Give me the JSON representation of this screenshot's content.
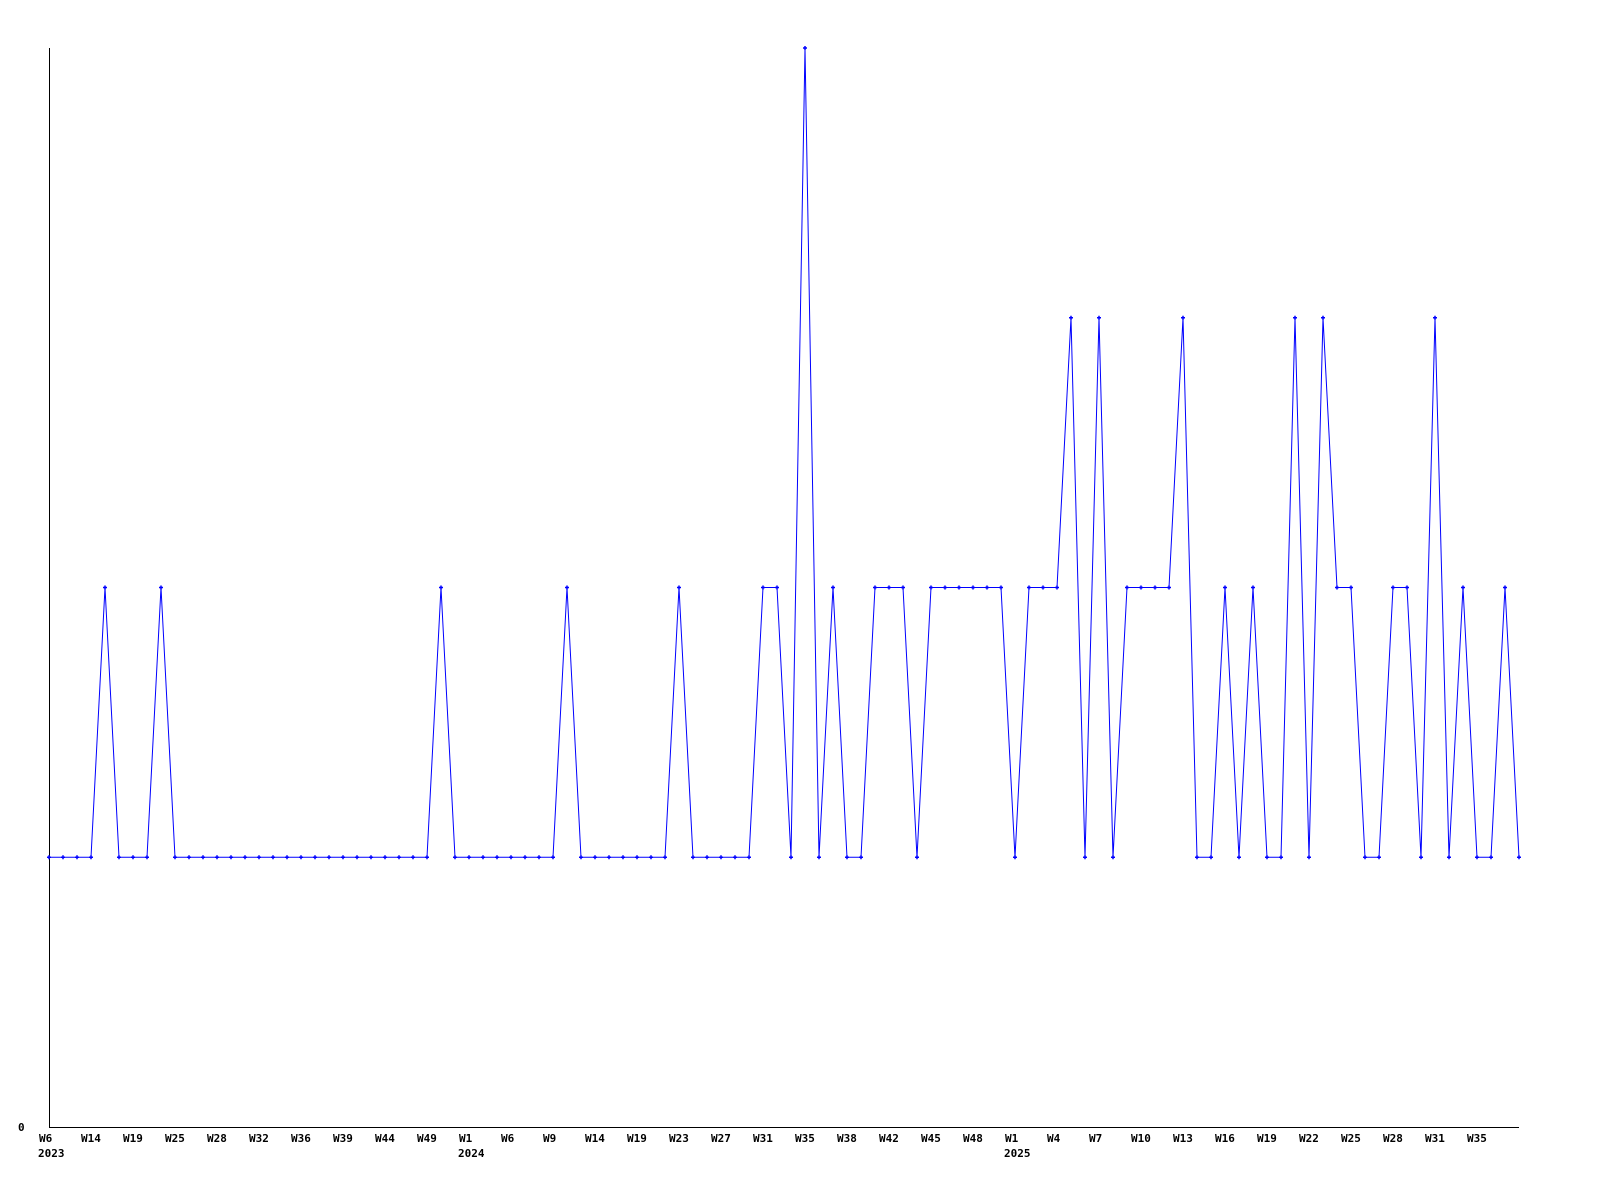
{
  "chart_data": {
    "type": "line",
    "title": "",
    "xlabel": "",
    "ylabel": "",
    "ylim": [
      0,
      4
    ],
    "y_tick_labels": [
      "0"
    ],
    "grid": false,
    "line_color": "#0000ff",
    "axis_color": "#000000",
    "x_tick_labels": [
      {
        "label": "W6",
        "year": "2023"
      },
      {
        "label": "W14"
      },
      {
        "label": "W19"
      },
      {
        "label": "W25"
      },
      {
        "label": "W28"
      },
      {
        "label": "W32"
      },
      {
        "label": "W36"
      },
      {
        "label": "W39"
      },
      {
        "label": "W44"
      },
      {
        "label": "W49"
      },
      {
        "label": "W1",
        "year": "2024"
      },
      {
        "label": "W6"
      },
      {
        "label": "W9"
      },
      {
        "label": "W14"
      },
      {
        "label": "W19"
      },
      {
        "label": "W23"
      },
      {
        "label": "W27"
      },
      {
        "label": "W31"
      },
      {
        "label": "W35"
      },
      {
        "label": "W38"
      },
      {
        "label": "W42"
      },
      {
        "label": "W45"
      },
      {
        "label": "W48"
      },
      {
        "label": "W1",
        "year": "2025"
      },
      {
        "label": "W4"
      },
      {
        "label": "W7"
      },
      {
        "label": "W10"
      },
      {
        "label": "W13"
      },
      {
        "label": "W16"
      },
      {
        "label": "W19"
      },
      {
        "label": "W22"
      },
      {
        "label": "W25"
      },
      {
        "label": "W28"
      },
      {
        "label": "W31"
      },
      {
        "label": "W35"
      }
    ],
    "points_per_tick": 3,
    "values": [
      1,
      1,
      1,
      1,
      2,
      1,
      1,
      1,
      2,
      1,
      1,
      1,
      1,
      1,
      1,
      1,
      1,
      1,
      1,
      1,
      1,
      1,
      1,
      1,
      1,
      1,
      1,
      1,
      2,
      1,
      1,
      1,
      1,
      1,
      1,
      1,
      1,
      2,
      1,
      1,
      1,
      1,
      1,
      1,
      1,
      2,
      1,
      1,
      1,
      1,
      1,
      2,
      2,
      1,
      4,
      1,
      2,
      1,
      1,
      2,
      2,
      2,
      1,
      2,
      2,
      2,
      2,
      2,
      2,
      1,
      2,
      2,
      2,
      3,
      1,
      3,
      1,
      2,
      2,
      2,
      2,
      3,
      1,
      1,
      2,
      1,
      2,
      1,
      1,
      3,
      1,
      3,
      2,
      2,
      1,
      1,
      2,
      2,
      1,
      3,
      1,
      2,
      1,
      1,
      2,
      1
    ]
  }
}
